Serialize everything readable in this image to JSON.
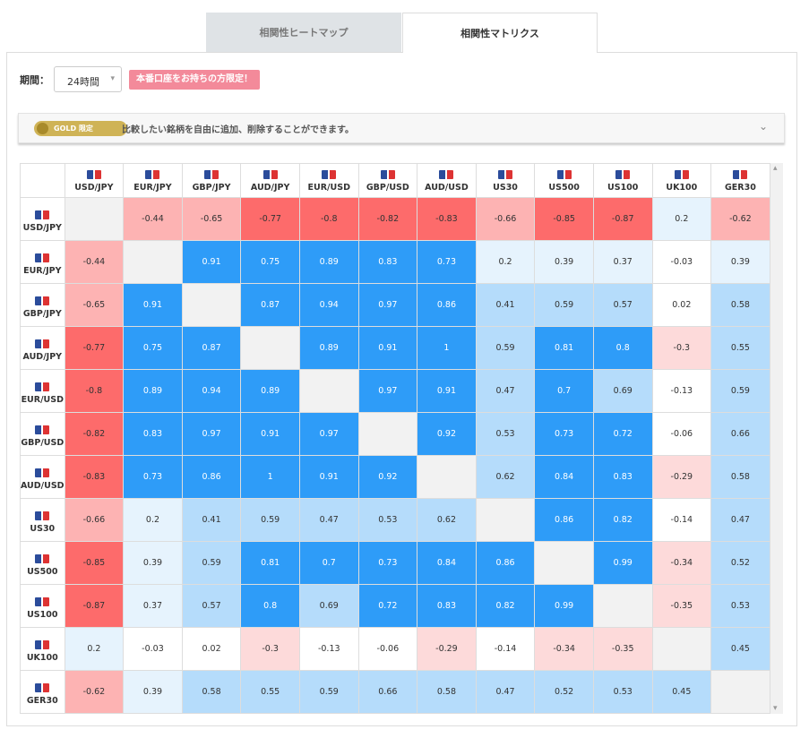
{
  "tabs": [
    "相関性ヒートマップ",
    "相関性マトリクス"
  ],
  "period": {
    "label": "期間：",
    "selected": "24時間",
    "badge": "本番口座をお持ちの方限定！"
  },
  "notice": {
    "gold": "GOLD",
    "limited": "限定",
    "text": "比較したい銘柄を自由に追加、削除することができます。"
  },
  "table": {
    "columns": [
      "USD/JPY",
      "EUR/JPY",
      "GBP/JPY",
      "AUD/JPY",
      "EUR/USD",
      "GBP/USD",
      "AUD/USD",
      "US30",
      "US500",
      "US100",
      "UK100",
      "GER30"
    ],
    "rows": [
      {
        "label": "USD/JPY",
        "cells": [
          null,
          -0.44,
          -0.65,
          -0.77,
          -0.8,
          -0.82,
          -0.83,
          -0.66,
          -0.85,
          -0.87,
          0.2,
          -0.62
        ]
      },
      {
        "label": "EUR/JPY",
        "cells": [
          -0.44,
          null,
          0.91,
          0.75,
          0.89,
          0.83,
          0.73,
          0.2,
          0.39,
          0.37,
          -0.03,
          0.39
        ]
      },
      {
        "label": "GBP/JPY",
        "cells": [
          -0.65,
          0.91,
          null,
          0.87,
          0.94,
          0.97,
          0.86,
          0.41,
          0.59,
          0.57,
          0.02,
          0.58
        ]
      },
      {
        "label": "AUD/JPY",
        "cells": [
          -0.77,
          0.75,
          0.87,
          null,
          0.89,
          0.91,
          1,
          0.59,
          0.81,
          0.8,
          -0.3,
          0.55
        ]
      },
      {
        "label": "EUR/USD",
        "cells": [
          -0.8,
          0.89,
          0.94,
          0.89,
          null,
          0.97,
          0.91,
          0.47,
          0.7,
          0.69,
          -0.13,
          0.59
        ]
      },
      {
        "label": "GBP/USD",
        "cells": [
          -0.82,
          0.83,
          0.97,
          0.91,
          0.97,
          null,
          0.92,
          0.53,
          0.73,
          0.72,
          -0.06,
          0.66
        ]
      },
      {
        "label": "AUD/USD",
        "cells": [
          -0.83,
          0.73,
          0.86,
          1,
          0.91,
          0.92,
          null,
          0.62,
          0.84,
          0.83,
          -0.29,
          0.58
        ]
      },
      {
        "label": "US30",
        "cells": [
          -0.66,
          0.2,
          0.41,
          0.59,
          0.47,
          0.53,
          0.62,
          null,
          0.86,
          0.82,
          -0.14,
          0.47
        ]
      },
      {
        "label": "US500",
        "cells": [
          -0.85,
          0.39,
          0.59,
          0.81,
          0.7,
          0.73,
          0.84,
          0.86,
          null,
          0.99,
          -0.34,
          0.52
        ]
      },
      {
        "label": "US100",
        "cells": [
          -0.87,
          0.37,
          0.57,
          0.8,
          0.69,
          0.72,
          0.83,
          0.82,
          0.99,
          null,
          -0.35,
          0.53
        ]
      },
      {
        "label": "UK100",
        "cells": [
          0.2,
          -0.03,
          0.02,
          -0.3,
          -0.13,
          -0.06,
          -0.29,
          -0.14,
          -0.34,
          -0.35,
          null,
          0.45
        ]
      },
      {
        "label": "GER30",
        "cells": [
          -0.62,
          0.39,
          0.58,
          0.55,
          0.59,
          0.66,
          0.58,
          0.47,
          0.52,
          0.53,
          0.45,
          null
        ]
      }
    ]
  }
}
